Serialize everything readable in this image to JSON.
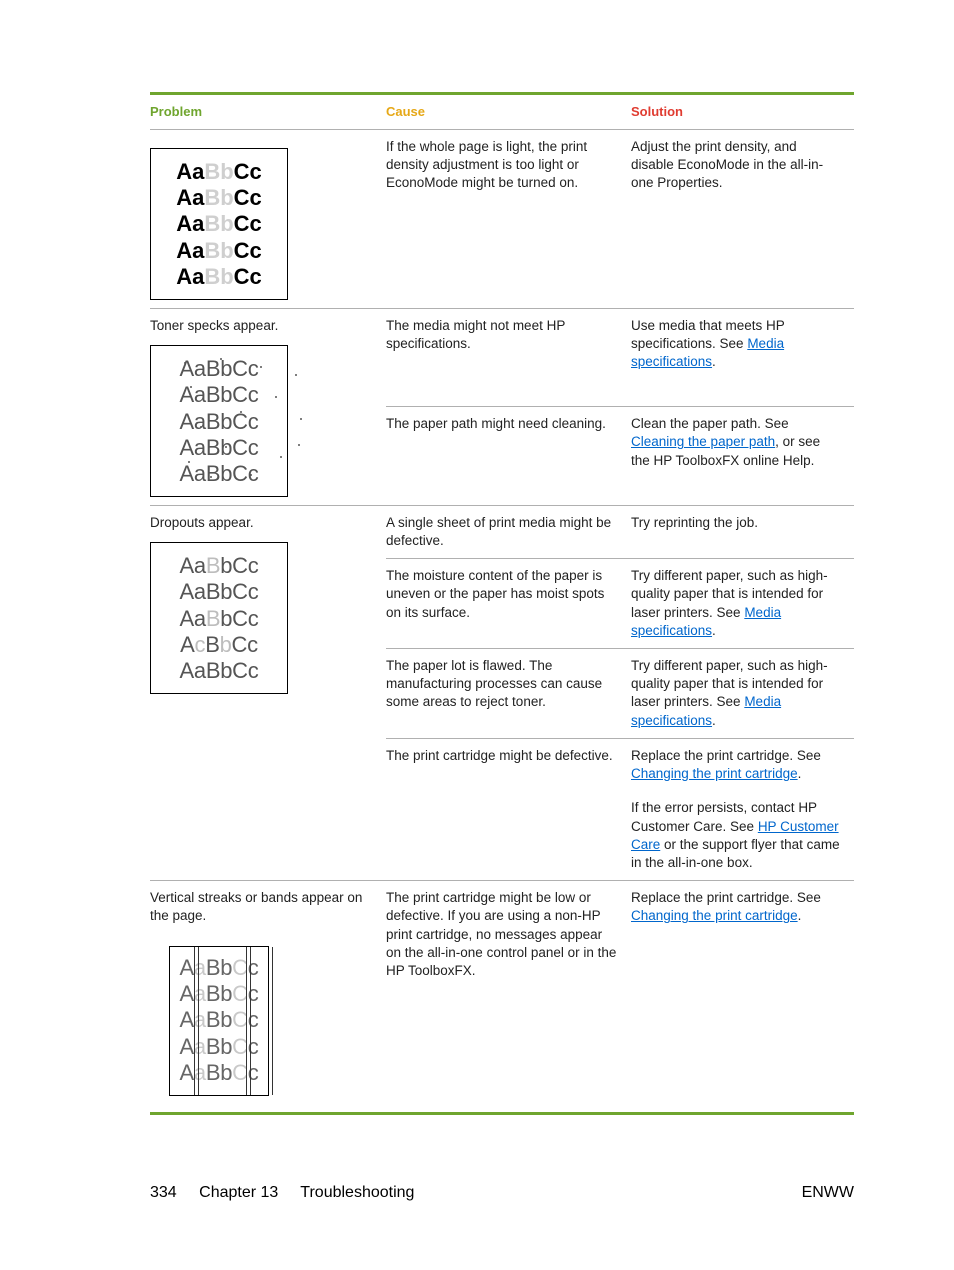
{
  "headers": {
    "problem": "Problem",
    "cause": "Cause",
    "solution": "Solution"
  },
  "rows": [
    {
      "problem": "",
      "sample": "light",
      "lines": [
        {
          "cause": "If the whole page is light, the print density adjustment is too light or EconoMode might be turned on.",
          "solution": [
            {
              "t": "Adjust the print density, and disable EconoMode in the all-in-one Properties."
            }
          ]
        }
      ]
    },
    {
      "problem": "Toner specks appear.",
      "sample": "specks",
      "lines": [
        {
          "cause": "The media might not meet HP specifications.",
          "solution": [
            {
              "t": "Use media that meets HP specifications. See "
            },
            {
              "t": "Media specifications",
              "link": true
            },
            {
              "t": "."
            }
          ]
        },
        {
          "cause": "The paper path might need cleaning.",
          "solution": [
            {
              "t": "Clean the paper path. See "
            },
            {
              "t": "Cleaning the paper path",
              "link": true
            },
            {
              "t": ", or see the HP ToolboxFX online Help."
            }
          ]
        }
      ]
    },
    {
      "problem": "Dropouts appear.",
      "sample": "dropouts",
      "lines": [
        {
          "cause": "A single sheet of print media might be defective.",
          "solution": [
            {
              "t": "Try reprinting the job."
            }
          ]
        },
        {
          "cause": "The moisture content of the paper is uneven or the paper has moist spots on its surface.",
          "solution": [
            {
              "t": "Try different paper, such as high-quality paper that is intended for laser printers. See "
            },
            {
              "t": "Media specifications",
              "link": true
            },
            {
              "t": "."
            }
          ]
        },
        {
          "cause": "The paper lot is flawed. The manufacturing processes can cause some areas to reject toner.",
          "solution": [
            {
              "t": "Try different paper, such as high-quality paper that is intended for laser printers. See "
            },
            {
              "t": "Media specifications",
              "link": true
            },
            {
              "t": "."
            }
          ]
        },
        {
          "cause": "The print cartridge might be defective.",
          "solution": [
            {
              "t": "Replace the print cartridge. See "
            },
            {
              "t": "Changing the print cartridge",
              "link": true
            },
            {
              "t": "."
            }
          ]
        },
        {
          "cause": "",
          "solution": [
            {
              "t": "If the error persists, contact HP Customer Care. See "
            },
            {
              "t": "HP Customer Care",
              "link": true
            },
            {
              "t": " or the support flyer that came in the all-in-one box."
            }
          ]
        }
      ]
    },
    {
      "problem": "Vertical streaks or bands appear on the page.",
      "sample": "streaks",
      "lines": [
        {
          "cause": "The print cartridge might be low or defective. If you are using a non-HP print cartridge, no messages appear on the all-in-one control panel or in the HP ToolboxFX.",
          "solution": [
            {
              "t": "Replace the print cartridge. See "
            },
            {
              "t": "Changing the print cartridge",
              "link": true
            },
            {
              "t": "."
            }
          ]
        }
      ]
    }
  ],
  "sample_text": "AaBbCc",
  "footer": {
    "pagenum": "334",
    "chapter": "Chapter 13",
    "title": "Troubleshooting",
    "right": "ENWW"
  },
  "colors": {
    "accent": "#6fa52e",
    "cause": "#e6a817",
    "solution": "#e03c31",
    "link": "#0066cc",
    "border": "#b0b0b0"
  }
}
